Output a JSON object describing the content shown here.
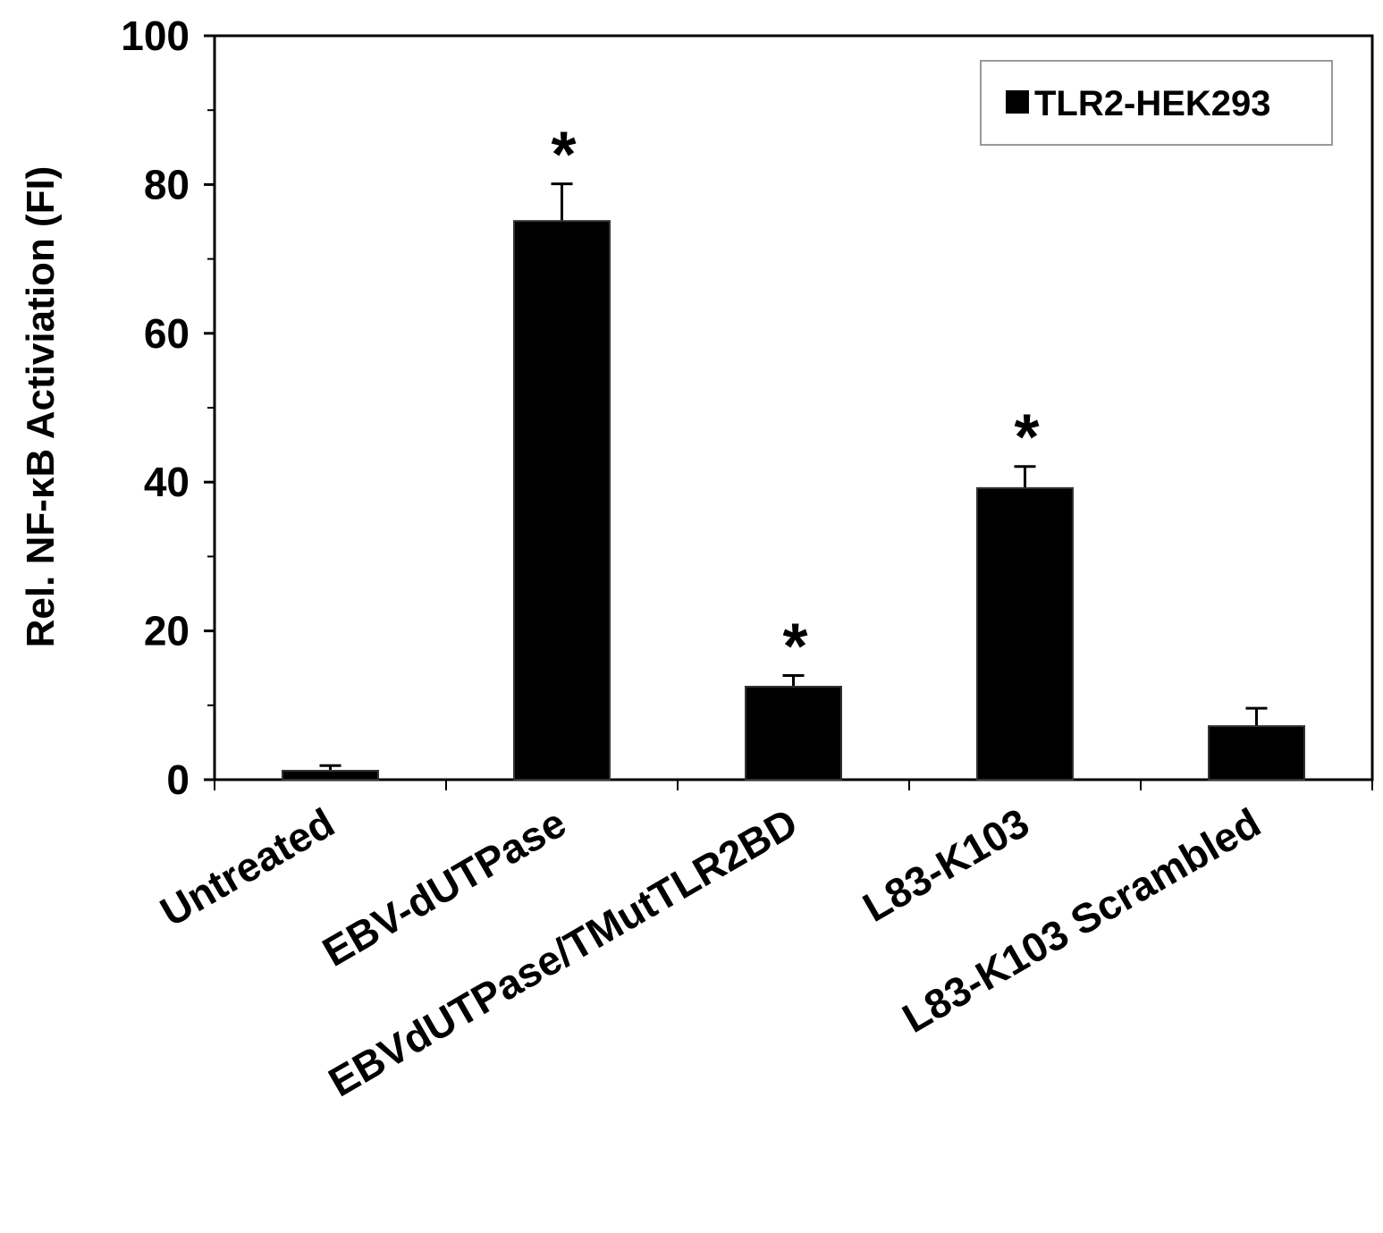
{
  "chart_data": {
    "type": "bar",
    "y_label": "Rel. NF-κB Activiation (FI)",
    "categories": [
      "Untreated",
      "EBV-dUTPase",
      "EBVdUTPase/TMutTLR2BD",
      "L83-K103",
      "L83-K103 Scrambled"
    ],
    "series": [
      {
        "name": "TLR2-HEK293",
        "color": "#000000",
        "values": [
          1.2,
          75.1,
          12.5,
          39.2,
          7.2
        ],
        "errors": [
          0.7,
          5.0,
          1.5,
          2.9,
          2.4
        ]
      }
    ],
    "significance_marker": "*",
    "significant": [
      false,
      true,
      true,
      true,
      false
    ],
    "ylim": [
      0,
      100
    ],
    "yticks": [
      0,
      20,
      40,
      60,
      80,
      100
    ],
    "minor_yticks": [
      10,
      30,
      50,
      70,
      90
    ],
    "legend": "upper right"
  }
}
